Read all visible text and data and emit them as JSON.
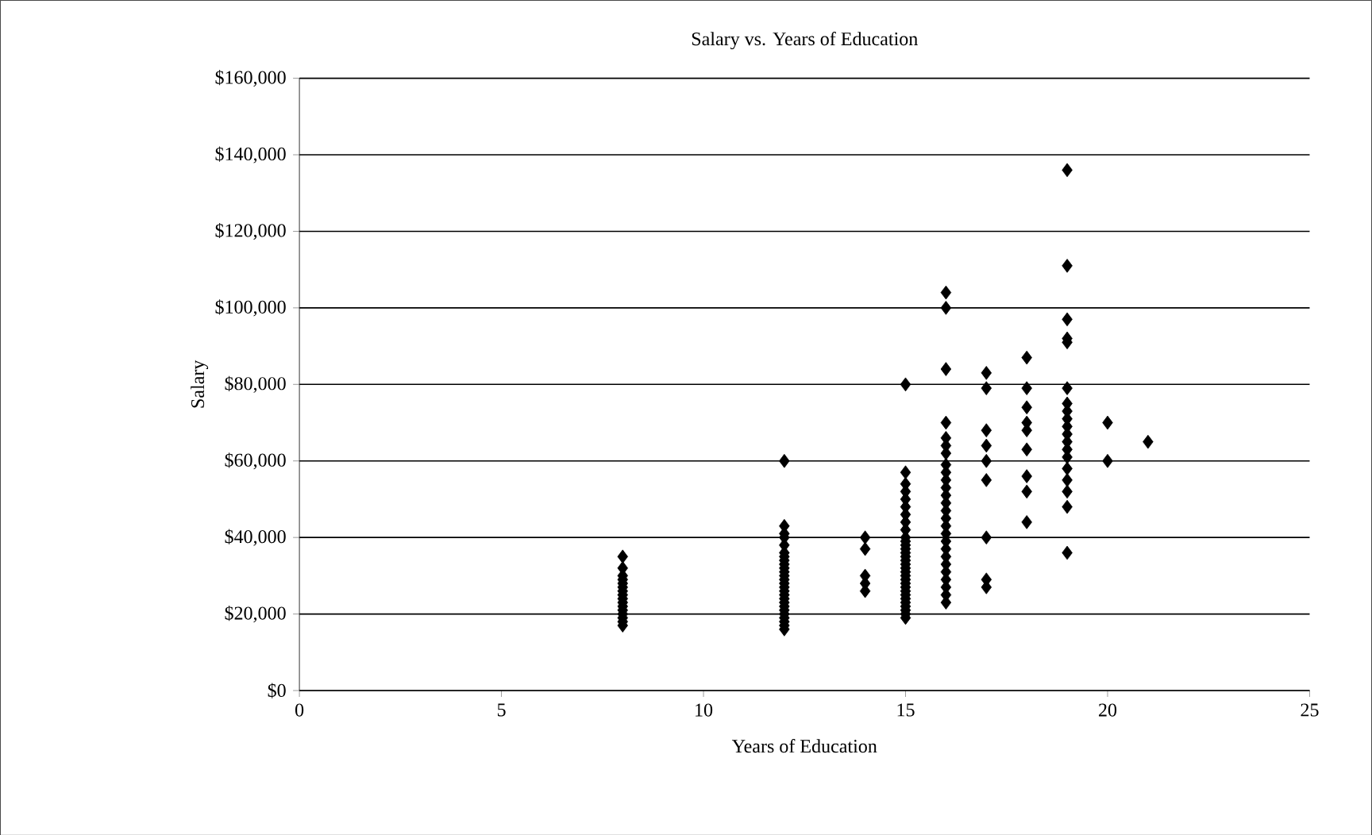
{
  "chart_data": {
    "type": "scatter",
    "title": "Salary vs. Years of Education",
    "xlabel": "Years of Education",
    "ylabel": "Salary",
    "x": [
      8,
      8,
      8,
      8,
      8,
      8,
      8,
      8,
      8,
      8,
      8,
      8,
      8,
      8,
      8,
      8,
      12,
      12,
      12,
      12,
      12,
      12,
      12,
      12,
      12,
      12,
      12,
      12,
      12,
      12,
      12,
      12,
      12,
      12,
      12,
      12,
      12,
      12,
      12,
      12,
      12,
      12,
      14,
      14,
      14,
      14,
      14,
      15,
      15,
      15,
      15,
      15,
      15,
      15,
      15,
      15,
      15,
      15,
      15,
      15,
      15,
      15,
      15,
      15,
      15,
      15,
      15,
      15,
      15,
      15,
      15,
      15,
      15,
      15,
      15,
      15,
      15,
      15,
      16,
      16,
      16,
      16,
      16,
      16,
      16,
      16,
      16,
      16,
      16,
      16,
      16,
      16,
      16,
      16,
      16,
      16,
      16,
      16,
      16,
      16,
      16,
      16,
      16,
      16,
      17,
      17,
      17,
      17,
      17,
      17,
      17,
      17,
      17,
      18,
      18,
      18,
      18,
      18,
      18,
      18,
      18,
      18,
      19,
      19,
      19,
      19,
      19,
      19,
      19,
      19,
      19,
      19,
      19,
      19,
      19,
      19,
      19,
      19,
      19,
      19,
      19,
      20,
      20,
      21
    ],
    "values": [
      17000,
      18000,
      19000,
      20000,
      21000,
      22000,
      23000,
      24000,
      25000,
      26000,
      27000,
      28000,
      29000,
      30000,
      32000,
      35000,
      16000,
      17000,
      18000,
      19000,
      20000,
      21000,
      22000,
      23000,
      24000,
      25000,
      26000,
      27000,
      28000,
      29000,
      30000,
      31000,
      32000,
      33000,
      34000,
      35000,
      36000,
      38000,
      40000,
      41000,
      43000,
      60000,
      26000,
      28000,
      30000,
      37000,
      40000,
      19000,
      20000,
      21000,
      22000,
      23000,
      24000,
      25000,
      26000,
      27000,
      28000,
      29000,
      30000,
      31000,
      32000,
      33000,
      34000,
      35000,
      36000,
      37000,
      38000,
      39000,
      40000,
      42000,
      44000,
      46000,
      48000,
      50000,
      52000,
      54000,
      57000,
      80000,
      23000,
      25000,
      27000,
      29000,
      31000,
      33000,
      35000,
      37000,
      39000,
      41000,
      43000,
      45000,
      47000,
      49000,
      51000,
      53000,
      55000,
      57000,
      59000,
      62000,
      64000,
      66000,
      70000,
      84000,
      100000,
      104000,
      27000,
      29000,
      40000,
      55000,
      60000,
      64000,
      68000,
      79000,
      83000,
      44000,
      52000,
      56000,
      63000,
      68000,
      70000,
      74000,
      79000,
      87000,
      36000,
      48000,
      52000,
      55000,
      58000,
      61000,
      63000,
      65000,
      67000,
      69000,
      71000,
      73000,
      75000,
      79000,
      91000,
      92000,
      97000,
      111000,
      136000,
      60000,
      70000,
      65000
    ],
    "color": "#000000",
    "marker": "diamond",
    "grid": "y",
    "xlim": [
      0,
      25
    ],
    "xticks": [
      0,
      5,
      10,
      15,
      20,
      25
    ],
    "ylim": [
      0,
      160000
    ],
    "yticks": [
      {
        "value": 0,
        "label": "$0"
      },
      {
        "value": 20000,
        "label": "$20,000"
      },
      {
        "value": 40000,
        "label": "$40,000"
      },
      {
        "value": 60000,
        "label": "$60,000"
      },
      {
        "value": 80000,
        "label": "$80,000"
      },
      {
        "value": 100000,
        "label": "$100,000"
      },
      {
        "value": 120000,
        "label": "$120,000"
      },
      {
        "value": 140000,
        "label": "$140,000"
      },
      {
        "value": 160000,
        "label": "$160,000"
      }
    ]
  }
}
